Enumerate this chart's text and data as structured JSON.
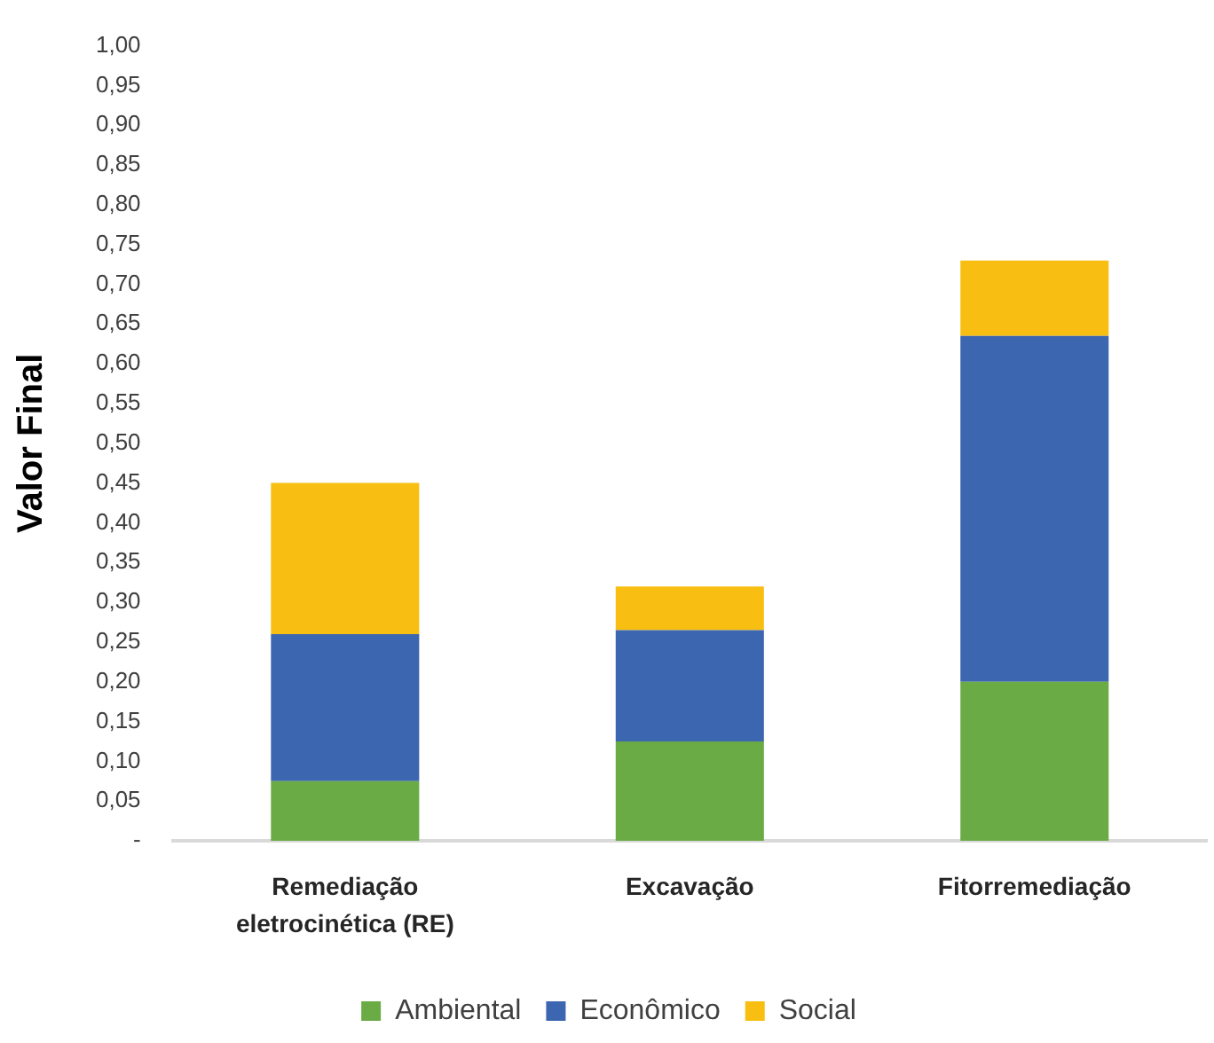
{
  "chart_data": {
    "type": "bar",
    "stacked": true,
    "ylabel": "Valor Final",
    "categories": [
      "Remediação eletrocinética (RE)",
      "Excavação",
      "Fitorremediação"
    ],
    "series": [
      {
        "name": "Ambiental",
        "color": "#6aab46",
        "values": [
          0.075,
          0.125,
          0.2
        ]
      },
      {
        "name": "Econômico",
        "color": "#3d66b0",
        "values": [
          0.185,
          0.14,
          0.435
        ]
      },
      {
        "name": "Social",
        "color": "#f8bf12",
        "values": [
          0.19,
          0.055,
          0.095
        ]
      }
    ],
    "ylim": [
      0,
      1
    ],
    "yticks": [
      {
        "value": 0,
        "label": "-"
      },
      {
        "value": 0.05,
        "label": "0,05"
      },
      {
        "value": 0.1,
        "label": "0,10"
      },
      {
        "value": 0.15,
        "label": "0,15"
      },
      {
        "value": 0.2,
        "label": "0,20"
      },
      {
        "value": 0.25,
        "label": "0,25"
      },
      {
        "value": 0.3,
        "label": "0,30"
      },
      {
        "value": 0.35,
        "label": "0,35"
      },
      {
        "value": 0.4,
        "label": "0,40"
      },
      {
        "value": 0.45,
        "label": "0,45"
      },
      {
        "value": 0.5,
        "label": "0,50"
      },
      {
        "value": 0.55,
        "label": "0,55"
      },
      {
        "value": 0.6,
        "label": "0,60"
      },
      {
        "value": 0.65,
        "label": "0,65"
      },
      {
        "value": 0.7,
        "label": "0,70"
      },
      {
        "value": 0.75,
        "label": "0,75"
      },
      {
        "value": 0.8,
        "label": "0,80"
      },
      {
        "value": 0.85,
        "label": "0,85"
      },
      {
        "value": 0.9,
        "label": "0,90"
      },
      {
        "value": 0.95,
        "label": "0,95"
      },
      {
        "value": 1,
        "label": "1,00"
      }
    ],
    "legend": "bottom"
  }
}
